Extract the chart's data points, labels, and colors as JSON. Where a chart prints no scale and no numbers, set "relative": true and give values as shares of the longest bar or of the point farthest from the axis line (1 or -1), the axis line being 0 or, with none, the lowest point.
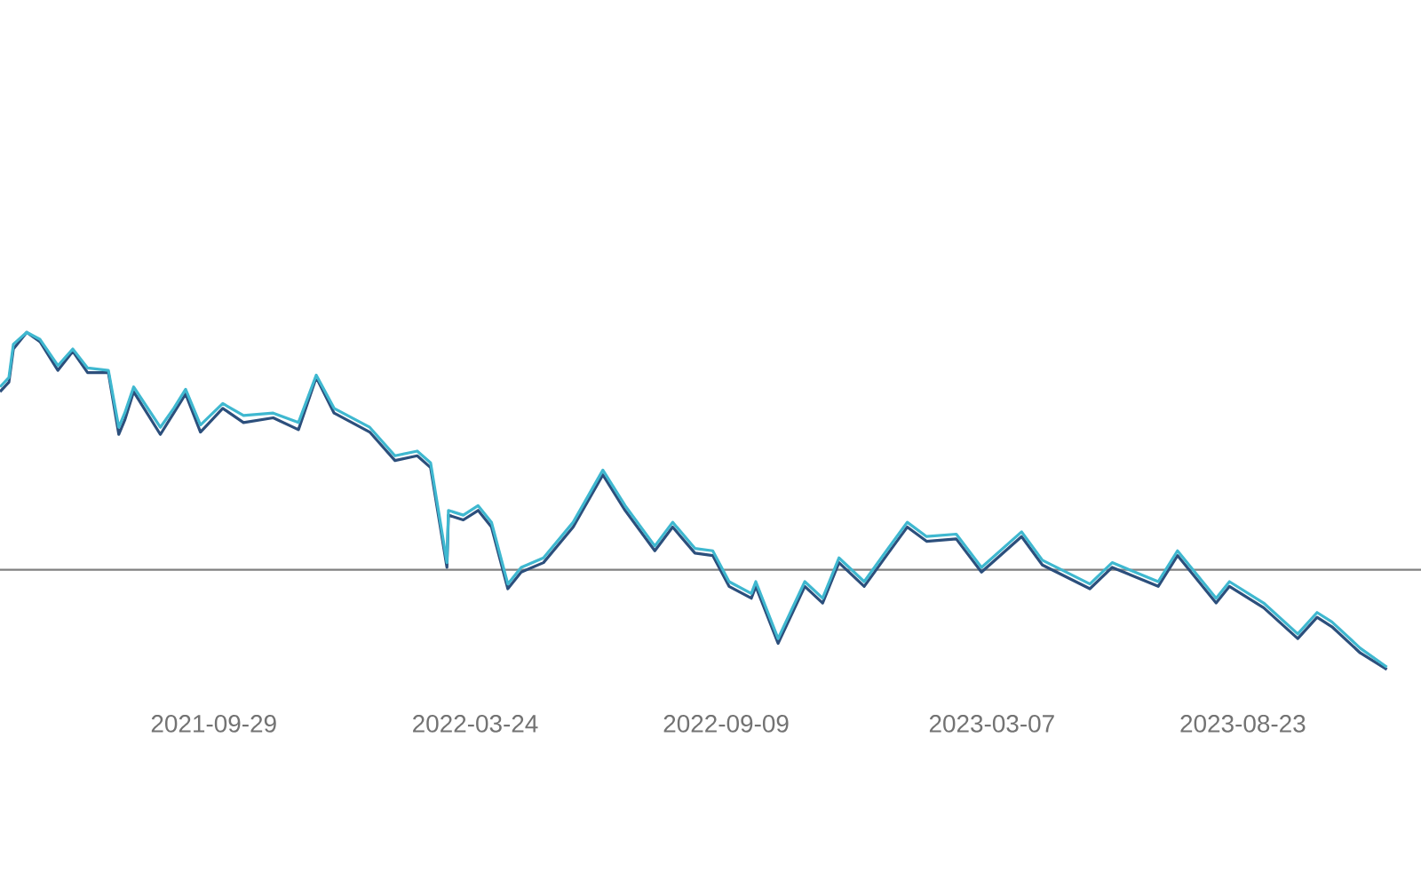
{
  "chart_data": {
    "type": "line",
    "relative": true,
    "x": [
      "2021-05-08",
      "2021-05-14",
      "2021-05-17",
      "2021-05-26",
      "2021-06-04",
      "2021-06-16",
      "2021-06-26",
      "2021-07-06",
      "2021-07-20",
      "2021-07-27",
      "2021-07-31",
      "2021-08-06",
      "2021-08-24",
      "2021-09-02",
      "2021-09-10",
      "2021-09-20",
      "2021-10-05",
      "2021-10-19",
      "2021-11-08",
      "2021-11-25",
      "2021-12-07",
      "2021-12-19",
      "2022-01-12",
      "2022-01-29",
      "2022-02-13",
      "2022-02-22",
      "2022-03-05",
      "2022-03-06",
      "2022-03-16",
      "2022-03-26",
      "2022-04-04",
      "2022-04-15",
      "2022-04-24",
      "2022-05-09",
      "2022-05-29",
      "2022-06-18",
      "2022-07-03",
      "2022-07-23",
      "2022-08-04",
      "2022-08-19",
      "2022-08-31",
      "2022-09-11",
      "2022-09-26",
      "2022-09-29",
      "2022-10-14",
      "2022-11-01",
      "2022-11-13",
      "2022-11-24",
      "2022-12-11",
      "2022-12-26",
      "2023-01-09",
      "2023-01-22",
      "2023-02-11",
      "2023-02-28",
      "2023-03-27",
      "2023-04-10",
      "2023-05-12",
      "2023-05-27",
      "2023-06-27",
      "2023-07-10",
      "2023-08-05",
      "2023-08-14",
      "2023-09-06",
      "2023-09-29",
      "2023-10-12",
      "2023-10-22",
      "2023-11-10",
      "2023-11-28"
    ],
    "xlim": [
      "2021-05-08",
      "2023-12-21"
    ],
    "xticks": [
      {
        "value": "2021-09-29",
        "label": "2021-09-29"
      },
      {
        "value": "2022-03-24",
        "label": "2022-03-24"
      },
      {
        "value": "2022-09-09",
        "label": "2022-09-09"
      },
      {
        "value": "2023-03-07",
        "label": "2023-03-07"
      },
      {
        "value": "2023-08-23",
        "label": "2023-08-23"
      }
    ],
    "series": [
      {
        "color": "#2c4f7c",
        "values": [
          0.75,
          0.79,
          0.93,
          1.0,
          0.96,
          0.84,
          0.92,
          0.83,
          0.83,
          0.57,
          0.63,
          0.75,
          0.57,
          0.66,
          0.74,
          0.58,
          0.68,
          0.62,
          0.64,
          0.59,
          0.81,
          0.66,
          0.58,
          0.46,
          0.48,
          0.43,
          0.01,
          0.23,
          0.21,
          0.25,
          0.18,
          -0.08,
          -0.01,
          0.03,
          0.18,
          0.4,
          0.25,
          0.08,
          0.18,
          0.07,
          0.06,
          -0.07,
          -0.12,
          -0.07,
          -0.31,
          -0.07,
          -0.14,
          0.03,
          -0.07,
          0.06,
          0.18,
          0.12,
          0.13,
          -0.01,
          0.14,
          0.02,
          -0.08,
          0.01,
          -0.07,
          0.06,
          -0.14,
          -0.07,
          -0.16,
          -0.29,
          -0.2,
          -0.24,
          -0.35,
          -0.42
        ]
      },
      {
        "color": "#3fb8d0",
        "values": [
          0.77,
          0.81,
          0.95,
          1.0,
          0.97,
          0.86,
          0.93,
          0.85,
          0.84,
          0.6,
          0.66,
          0.77,
          0.6,
          0.68,
          0.76,
          0.61,
          0.7,
          0.65,
          0.66,
          0.62,
          0.82,
          0.68,
          0.6,
          0.48,
          0.5,
          0.45,
          0.03,
          0.25,
          0.23,
          0.27,
          0.2,
          -0.06,
          0.01,
          0.05,
          0.2,
          0.42,
          0.27,
          0.1,
          0.2,
          0.09,
          0.08,
          -0.05,
          -0.1,
          -0.05,
          -0.29,
          -0.05,
          -0.12,
          0.05,
          -0.05,
          0.08,
          0.2,
          0.14,
          0.15,
          0.01,
          0.16,
          0.04,
          -0.06,
          0.03,
          -0.05,
          0.08,
          -0.12,
          -0.05,
          -0.14,
          -0.27,
          -0.18,
          -0.22,
          -0.33,
          -0.41
        ]
      }
    ]
  }
}
